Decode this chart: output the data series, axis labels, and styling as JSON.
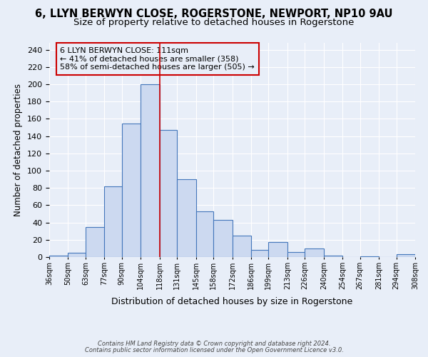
{
  "title1": "6, LLYN BERWYN CLOSE, ROGERSTONE, NEWPORT, NP10 9AU",
  "title2": "Size of property relative to detached houses in Rogerstone",
  "xlabel": "Distribution of detached houses by size in Rogerstone",
  "ylabel": "Number of detached properties",
  "footnote1": "Contains HM Land Registry data © Crown copyright and database right 2024.",
  "footnote2": "Contains public sector information licensed under the Open Government Licence v3.0.",
  "bin_labels": [
    "36sqm",
    "50sqm",
    "63sqm",
    "77sqm",
    "90sqm",
    "104sqm",
    "118sqm",
    "131sqm",
    "145sqm",
    "158sqm",
    "172sqm",
    "186sqm",
    "199sqm",
    "213sqm",
    "226sqm",
    "240sqm",
    "254sqm",
    "267sqm",
    "281sqm",
    "294sqm",
    "308sqm"
  ],
  "bar_heights": [
    2,
    5,
    35,
    82,
    155,
    200,
    147,
    90,
    53,
    43,
    25,
    8,
    17,
    6,
    10,
    2,
    0,
    1,
    0,
    3
  ],
  "bar_color": "#ccd9f0",
  "bar_edge_color": "#4477bb",
  "background_color": "#e8eef8",
  "grid_color": "#ffffff",
  "vline_color": "#cc0000",
  "annotation_text": "6 LLYN BERWYN CLOSE: 111sqm\n← 41% of detached houses are smaller (358)\n58% of semi-detached houses are larger (505) →",
  "annotation_box_color": "#cc0000",
  "ylim": [
    0,
    248
  ],
  "title1_fontsize": 10.5,
  "title2_fontsize": 9.5,
  "bin_width": 13.636
}
